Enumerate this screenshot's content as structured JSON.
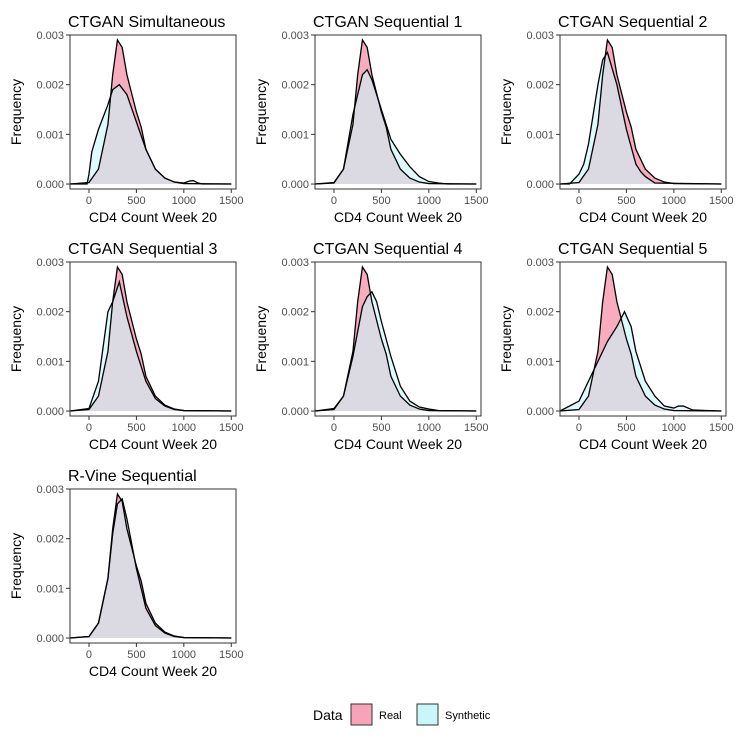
{
  "chart_data": {
    "type": "area",
    "x_axis": {
      "label": "CD4 Count Week 20",
      "range": [
        -200,
        1550
      ],
      "ticks": [
        0,
        500,
        1000,
        1500
      ],
      "tick_labels": [
        "0",
        "500",
        "1000",
        "1500"
      ]
    },
    "y_axis": {
      "label": "Frequency",
      "range": [
        -0.0001,
        0.003
      ],
      "ticks": [
        0.0,
        0.001,
        0.002,
        0.003
      ],
      "tick_labels": [
        "0.000",
        "0.001",
        "0.002",
        "0.003"
      ]
    },
    "grid": false,
    "colors": {
      "Real": "#f7a3b8",
      "Synthetic": "#c8f6fa",
      "outline": "#000000"
    },
    "legend": {
      "title": "Data",
      "placement": "bottom",
      "entries": [
        "Real",
        "Synthetic"
      ]
    },
    "real_density": {
      "x": [
        -200,
        0,
        100,
        200,
        250,
        300,
        350,
        400,
        500,
        550,
        600,
        700,
        800,
        900,
        1000,
        1500
      ],
      "y": [
        0.0,
        3e-05,
        0.0003,
        0.0012,
        0.0022,
        0.0029,
        0.00275,
        0.0022,
        0.00145,
        0.00115,
        0.0007,
        0.0003,
        0.00012,
        4e-05,
        1e-05,
        0.0
      ]
    },
    "panels": [
      {
        "title": "CTGAN Simultaneous",
        "synthetic_density": {
          "x": [
            -200,
            -20,
            0,
            30,
            100,
            200,
            250,
            320,
            400,
            500,
            600,
            700,
            800,
            900,
            1000,
            1060,
            1100,
            1150,
            1200,
            1500
          ],
          "y": [
            0.0,
            0.0,
            0.0002,
            0.00065,
            0.0011,
            0.0016,
            0.0019,
            0.002,
            0.0018,
            0.00125,
            0.0007,
            0.0003,
            0.00012,
            4e-05,
            2e-05,
            6e-05,
            7e-05,
            2e-05,
            0.0,
            0.0
          ]
        }
      },
      {
        "title": "CTGAN Sequential 1",
        "synthetic_density": {
          "x": [
            -200,
            0,
            100,
            200,
            300,
            350,
            400,
            500,
            600,
            700,
            800,
            900,
            1000,
            1100,
            1200,
            1500
          ],
          "y": [
            0.0,
            2e-05,
            0.0003,
            0.0014,
            0.0022,
            0.0023,
            0.0021,
            0.0015,
            0.0009,
            0.0006,
            0.00035,
            0.00015,
            5e-05,
            2e-05,
            0.0,
            0.0
          ]
        }
      },
      {
        "title": "CTGAN Sequential 2",
        "synthetic_density": {
          "x": [
            -200,
            -100,
            0,
            50,
            100,
            150,
            200,
            250,
            300,
            400,
            500,
            600,
            650,
            700,
            800,
            1500
          ],
          "y": [
            0.0,
            0.0,
            0.0002,
            0.0004,
            0.0008,
            0.0014,
            0.002,
            0.0025,
            0.00265,
            0.002,
            0.0011,
            0.0004,
            0.00025,
            0.00015,
            2e-05,
            0.0
          ]
        }
      },
      {
        "title": "CTGAN Sequential 3",
        "synthetic_density": {
          "x": [
            -200,
            0,
            100,
            200,
            250,
            320,
            400,
            500,
            600,
            700,
            800,
            900,
            1000,
            1500
          ],
          "y": [
            0.0,
            5e-05,
            0.0006,
            0.002,
            0.0022,
            0.0026,
            0.0019,
            0.0012,
            0.0006,
            0.00025,
            0.0001,
            3e-05,
            1e-05,
            0.0
          ]
        }
      },
      {
        "title": "CTGAN Sequential 4",
        "synthetic_density": {
          "x": [
            -200,
            0,
            100,
            200,
            300,
            350,
            400,
            450,
            500,
            600,
            700,
            800,
            900,
            1000,
            1100,
            1500
          ],
          "y": [
            0.0,
            5e-05,
            0.0003,
            0.0011,
            0.0021,
            0.0023,
            0.0024,
            0.0022,
            0.0018,
            0.0011,
            0.0005,
            0.0002,
            8e-05,
            4e-05,
            1e-05,
            0.0
          ]
        }
      },
      {
        "title": "CTGAN Sequential 5",
        "synthetic_density": {
          "x": [
            -200,
            0,
            100,
            200,
            300,
            400,
            480,
            550,
            600,
            700,
            800,
            900,
            1000,
            1050,
            1100,
            1200,
            1500
          ],
          "y": [
            0.0,
            0.0002,
            0.0006,
            0.001,
            0.0014,
            0.0017,
            0.002,
            0.0017,
            0.0012,
            0.0006,
            0.0003,
            0.0001,
            6e-05,
            0.0001,
            0.0001,
            2e-05,
            0.0
          ]
        }
      },
      {
        "title": "R-Vine Sequential",
        "synthetic_density": {
          "x": [
            -200,
            0,
            100,
            200,
            250,
            300,
            350,
            400,
            500,
            550,
            600,
            700,
            800,
            900,
            1000,
            1500
          ],
          "y": [
            0.0,
            3e-05,
            0.0003,
            0.0012,
            0.0021,
            0.0027,
            0.0028,
            0.0024,
            0.0014,
            0.001,
            0.0006,
            0.00025,
            0.0001,
            3e-05,
            1e-05,
            0.0
          ]
        }
      }
    ]
  }
}
